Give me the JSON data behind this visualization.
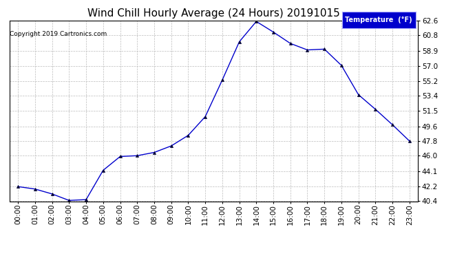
{
  "title": "Wind Chill Hourly Average (24 Hours) 20191015",
  "copyright": "Copyright 2019 Cartronics.com",
  "legend_label": "Temperature  (°F)",
  "hours": [
    0,
    1,
    2,
    3,
    4,
    5,
    6,
    7,
    8,
    9,
    10,
    11,
    12,
    13,
    14,
    15,
    16,
    17,
    18,
    19,
    20,
    21,
    22,
    23
  ],
  "temps": [
    42.2,
    41.9,
    41.3,
    40.5,
    40.6,
    44.2,
    45.9,
    46.0,
    46.4,
    47.2,
    48.5,
    50.8,
    55.3,
    60.0,
    62.5,
    61.2,
    59.8,
    59.0,
    59.1,
    57.1,
    53.5,
    51.7,
    49.8,
    47.8
  ],
  "ylim_min": 40.4,
  "ylim_max": 62.6,
  "yticks": [
    40.4,
    42.2,
    44.1,
    46.0,
    47.8,
    49.6,
    51.5,
    53.4,
    55.2,
    57.0,
    58.9,
    60.8,
    62.6
  ],
  "line_color": "#0000cc",
  "marker": "^",
  "marker_color": "#000033",
  "grid_color": "#bbbbbb",
  "bg_color": "#ffffff",
  "title_fontsize": 11,
  "tick_fontsize": 7.5,
  "copyright_fontsize": 6.5,
  "legend_bg": "#0000cc",
  "legend_fg": "#ffffff",
  "legend_fontsize": 7
}
